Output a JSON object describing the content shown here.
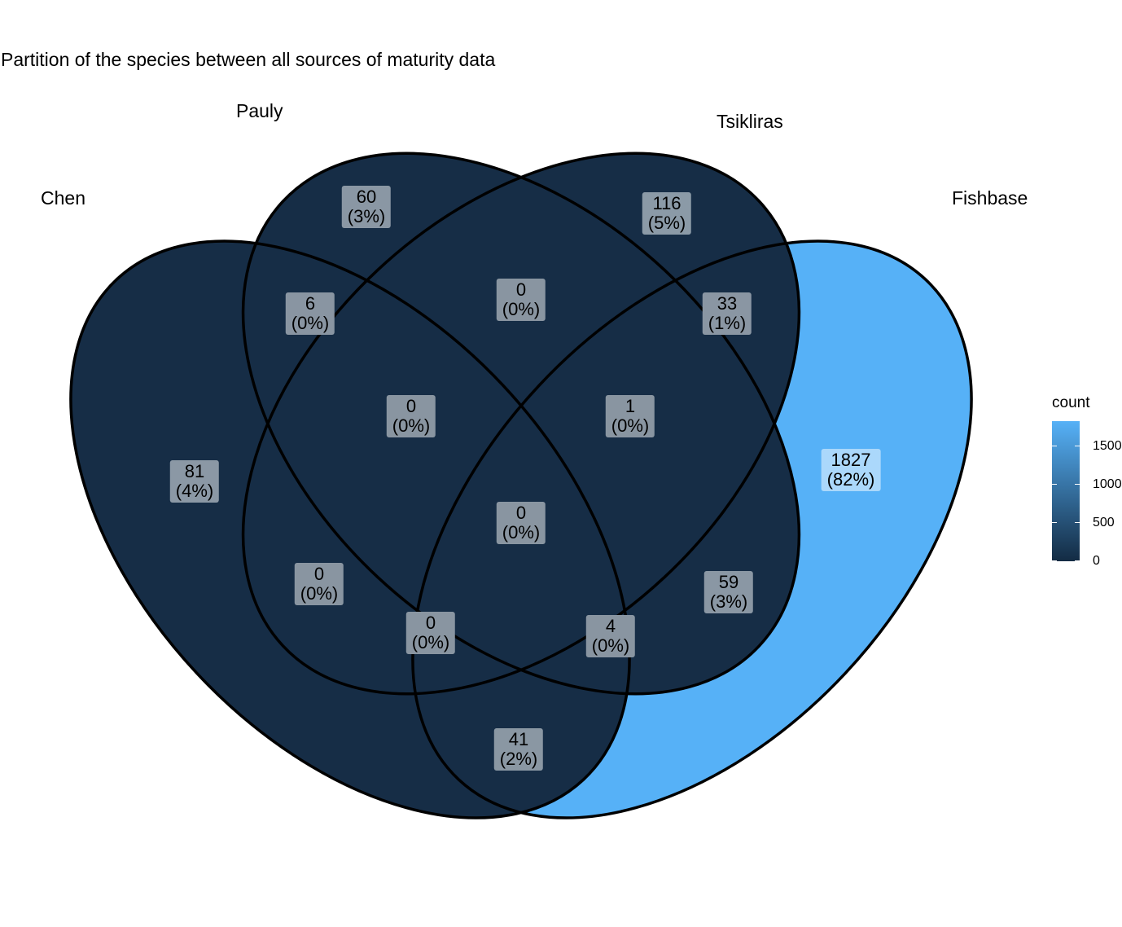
{
  "title": "Partition of the species between all sources of maturity data",
  "sets": {
    "chen": "Chen",
    "pauly": "Pauly",
    "tsikliras": "Tsikliras",
    "fishbase": "Fishbase"
  },
  "regions": {
    "chen_only": {
      "count": "81",
      "pct": "(4%)",
      "value": 81
    },
    "pauly_only": {
      "count": "60",
      "pct": "(3%)",
      "value": 60
    },
    "tsikliras_only": {
      "count": "116",
      "pct": "(5%)",
      "value": 116
    },
    "fishbase_only": {
      "count": "1827",
      "pct": "(82%)",
      "value": 1827
    },
    "chen_pauly": {
      "count": "6",
      "pct": "(0%)",
      "value": 6
    },
    "pauly_tsikliras": {
      "count": "0",
      "pct": "(0%)",
      "value": 0
    },
    "tsikliras_fishbase": {
      "count": "33",
      "pct": "(1%)",
      "value": 33
    },
    "chen_pauly_tsikliras": {
      "count": "0",
      "pct": "(0%)",
      "value": 0
    },
    "pauly_tsikliras_fishbase": {
      "count": "1",
      "pct": "(0%)",
      "value": 1
    },
    "all_four": {
      "count": "0",
      "pct": "(0%)",
      "value": 0
    },
    "chen_tsikliras": {
      "count": "0",
      "pct": "(0%)",
      "value": 0
    },
    "pauly_fishbase": {
      "count": "59",
      "pct": "(3%)",
      "value": 59
    },
    "chen_tsikliras_fishbase": {
      "count": "0",
      "pct": "(0%)",
      "value": 0
    },
    "chen_pauly_fishbase": {
      "count": "4",
      "pct": "(0%)",
      "value": 4
    },
    "chen_fishbase": {
      "count": "41",
      "pct": "(2%)",
      "value": 41
    }
  },
  "legend": {
    "title": "count",
    "ticks": [
      "1500",
      "1000",
      "500",
      "0"
    ],
    "tick_values": [
      1500,
      1000,
      500,
      0
    ],
    "min": 0,
    "max": 1827,
    "low_color": "#132B43",
    "high_color": "#56B1F7"
  }
}
